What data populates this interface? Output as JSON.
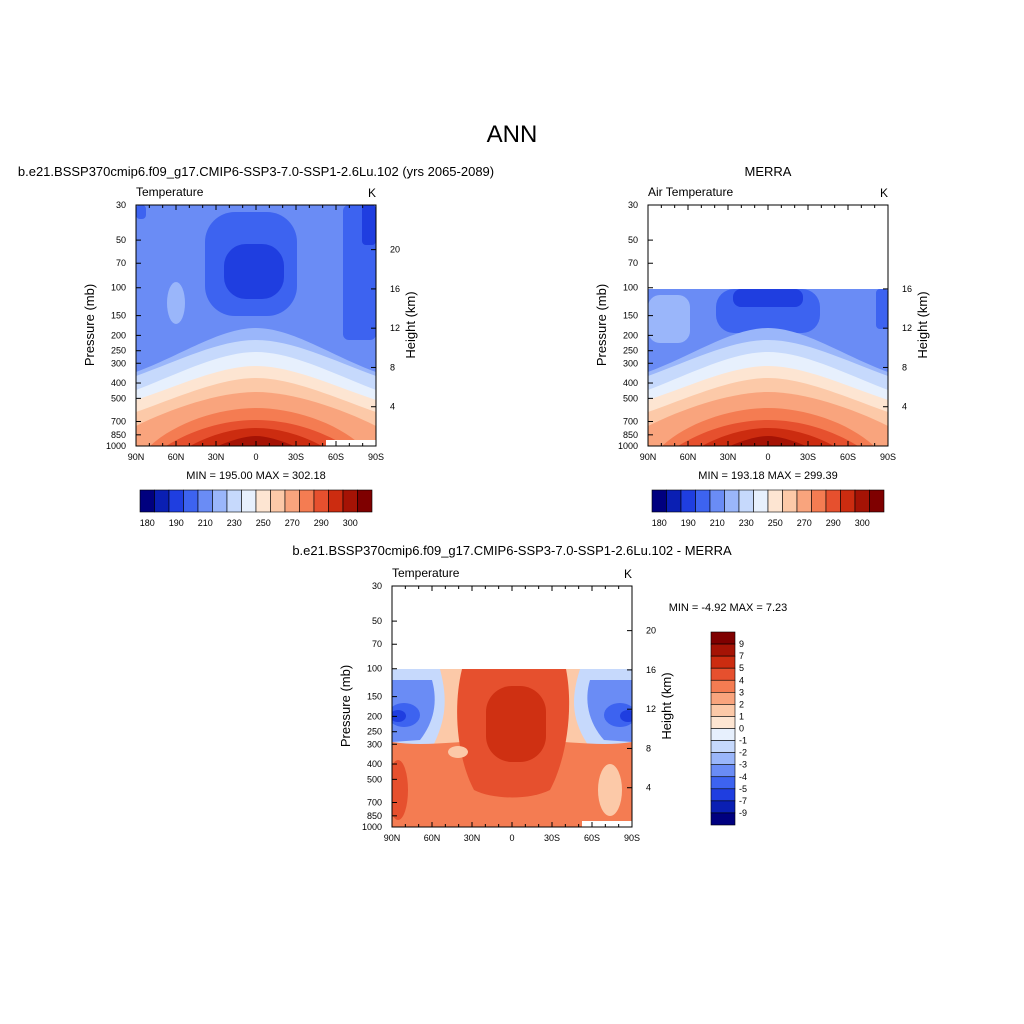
{
  "figure": {
    "title": "ANN"
  },
  "colors": {
    "abs_scale": [
      "#00007f",
      "#0a1fb3",
      "#1f3ee0",
      "#3d63f0",
      "#6a8cf5",
      "#9ab6fa",
      "#c6d9fc",
      "#e7f0fd",
      "#fde5d2",
      "#fcc9a8",
      "#f9a47d",
      "#f47c52",
      "#e6502e",
      "#cc2c10",
      "#a51305",
      "#7f0000"
    ],
    "diff_scale": [
      "#00007f",
      "#0a1fb3",
      "#1f3ee0",
      "#3d63f0",
      "#6a8cf5",
      "#9ab6fa",
      "#c6d9fc",
      "#e7f0fd",
      "#fde5d2",
      "#fcc9a8",
      "#f9a47d",
      "#f47c52",
      "#e6502e",
      "#cc2c10",
      "#a51305",
      "#7f0000"
    ]
  },
  "chart_data": [
    {
      "type": "heatmap",
      "panel": "model",
      "title": "b.e21.BSSP370cmip6.f09_g17.CMIP6-SSP3-7.0-SSP1-2.6Lu.102 (yrs 2065-2089)",
      "left_label": "Temperature",
      "right_label": "K",
      "xlabel": "",
      "ylabel": "Pressure (mb)",
      "ylabel_right": "Height (km)",
      "x_ticks": [
        "90N",
        "60N",
        "30N",
        "0",
        "30S",
        "60S",
        "90S"
      ],
      "y_ticks": [
        "30",
        "50",
        "70",
        "100",
        "150",
        "200",
        "250",
        "300",
        "400",
        "500",
        "700",
        "850",
        "1000"
      ],
      "y_ticks_right": [
        "20",
        "16",
        "12",
        "8",
        "4"
      ],
      "ylim": [
        30,
        1000
      ],
      "y_scale": "log",
      "stats": "MIN = 195.00  MAX = 302.18",
      "min": 195.0,
      "max": 302.18,
      "data_top": 30,
      "colorbar": {
        "orientation": "horizontal",
        "levels": [
          175,
          180,
          185,
          190,
          200,
          210,
          220,
          230,
          240,
          250,
          260,
          270,
          280,
          290,
          295,
          300
        ],
        "labels": [
          "180",
          "190",
          "210",
          "230",
          "250",
          "270",
          "290",
          "300"
        ]
      }
    },
    {
      "type": "heatmap",
      "panel": "obs",
      "title": "MERRA",
      "left_label": "Air Temperature",
      "right_label": "K",
      "xlabel": "",
      "ylabel": "Pressure (mb)",
      "ylabel_right": "Height (km)",
      "x_ticks": [
        "90N",
        "60N",
        "30N",
        "0",
        "30S",
        "60S",
        "90S"
      ],
      "y_ticks": [
        "30",
        "50",
        "70",
        "100",
        "150",
        "200",
        "250",
        "300",
        "400",
        "500",
        "700",
        "850",
        "1000"
      ],
      "y_ticks_right": [
        "16",
        "12",
        "8",
        "4"
      ],
      "ylim": [
        30,
        1000
      ],
      "y_scale": "log",
      "stats": "MIN = 193.18  MAX = 299.39",
      "min": 193.18,
      "max": 299.39,
      "data_top": 100,
      "colorbar": {
        "orientation": "horizontal",
        "levels": [
          175,
          180,
          185,
          190,
          200,
          210,
          220,
          230,
          240,
          250,
          260,
          270,
          280,
          290,
          295,
          300
        ],
        "labels": [
          "180",
          "190",
          "210",
          "230",
          "250",
          "270",
          "290",
          "300"
        ]
      }
    },
    {
      "type": "heatmap",
      "panel": "difference",
      "title": "b.e21.BSSP370cmip6.f09_g17.CMIP6-SSP3-7.0-SSP1-2.6Lu.102 - MERRA",
      "left_label": "Temperature",
      "right_label": "K",
      "xlabel": "",
      "ylabel": "Pressure (mb)",
      "ylabel_right": "Height (km)",
      "x_ticks": [
        "90N",
        "60N",
        "30N",
        "0",
        "30S",
        "60S",
        "90S"
      ],
      "y_ticks": [
        "30",
        "50",
        "70",
        "100",
        "150",
        "200",
        "250",
        "300",
        "400",
        "500",
        "700",
        "850",
        "1000"
      ],
      "y_ticks_right": [
        "20",
        "16",
        "12",
        "8",
        "4"
      ],
      "ylim": [
        30,
        1000
      ],
      "y_scale": "log",
      "stats": "MIN =  -4.92  MAX =   7.23",
      "min": -4.92,
      "max": 7.23,
      "data_top": 100,
      "colorbar": {
        "orientation": "vertical",
        "levels": [
          -10,
          -9,
          -7,
          -5,
          -4,
          -3,
          -2,
          -1,
          0,
          1,
          2,
          3,
          4,
          5,
          7,
          9,
          10
        ],
        "labels": [
          "9",
          "7",
          "5",
          "4",
          "3",
          "2",
          "1",
          "0",
          "-1",
          "-2",
          "-3",
          "-4",
          "-5",
          "-7",
          "-9"
        ]
      }
    }
  ]
}
